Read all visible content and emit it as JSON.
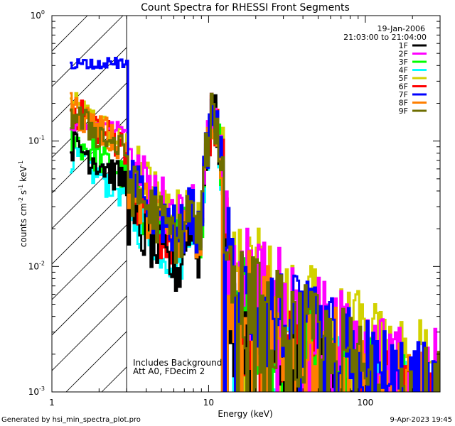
{
  "chart_data": {
    "type": "line",
    "title": "Count Spectra for RHESSI Front Segments",
    "xlabel": "Energy (keV)",
    "ylabel_main": "counts cm",
    "ylabel_exp1": "-2",
    "ylabel_mid1": " s",
    "ylabel_exp2": "-1",
    "ylabel_mid2": " keV",
    "ylabel_exp3": "-1",
    "x_scale": "log",
    "y_scale": "log",
    "xlim": [
      1,
      300
    ],
    "ylim": [
      0.001,
      1
    ],
    "x_ticks": [
      {
        "value": 1,
        "label": "1"
      },
      {
        "value": 10,
        "label": "10"
      },
      {
        "value": 100,
        "label": "100"
      }
    ],
    "y_ticks": [
      {
        "value": 0.001,
        "base": "10",
        "exp": "-3"
      },
      {
        "value": 0.01,
        "base": "10",
        "exp": "-2"
      },
      {
        "value": 0.1,
        "base": "10",
        "exp": "-1"
      },
      {
        "value": 1,
        "base": "10",
        "exp": "0"
      }
    ],
    "hatched_region": [
      1,
      3
    ],
    "date": "19-Jan-2006",
    "time_range": "21:03:00 to 21:04:00",
    "annotation_1": "Includes Background",
    "annotation_2": "Att A0, FDecim 2",
    "legend_position": "top-right",
    "series": [
      {
        "name": "1F",
        "color": "#000000"
      },
      {
        "name": "2F",
        "color": "#ff00ff"
      },
      {
        "name": "3F",
        "color": "#00ff00"
      },
      {
        "name": "4F",
        "color": "#00ffff"
      },
      {
        "name": "5F",
        "color": "#d2d200"
      },
      {
        "name": "6F",
        "color": "#ff0000"
      },
      {
        "name": "7F",
        "color": "#0000ff"
      },
      {
        "name": "8F",
        "color": "#ff7f00"
      },
      {
        "name": "9F",
        "color": "#6e6e00"
      }
    ]
  },
  "footer": {
    "left": "Generated by hsi_min_spectra_plot.pro",
    "right": "9-Apr-2023 19:45"
  }
}
